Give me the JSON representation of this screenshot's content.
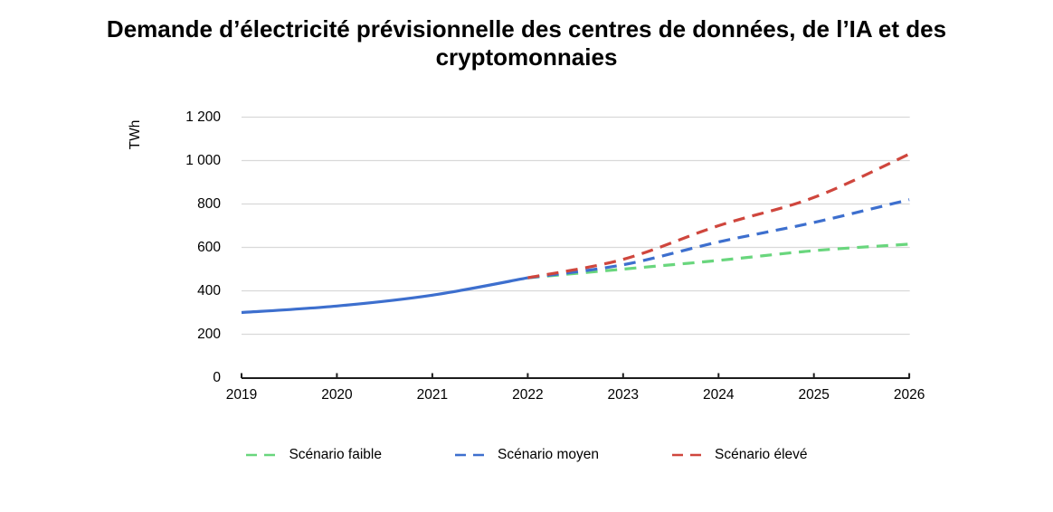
{
  "chart_data": {
    "type": "line",
    "title": "Demande d’électricité prévisionnelle des centres de données, de l’IA et des cryptomonnaies",
    "ylabel": "TWh",
    "x": [
      2019,
      2020,
      2021,
      2022,
      2023,
      2024,
      2025,
      2026
    ],
    "xtick_labels": [
      "2019",
      "2020",
      "2021",
      "2022",
      "2023",
      "2024",
      "2025",
      "2026"
    ],
    "yticks": [
      0,
      200,
      400,
      600,
      800,
      1000,
      1200
    ],
    "ytick_labels": [
      "0",
      "200",
      "400",
      "600",
      "800",
      "1 000",
      "1 200"
    ],
    "ylim": [
      0,
      1200
    ],
    "xlim": [
      2019,
      2026
    ],
    "grid": "horizontal",
    "gridline_color": "#d9d9d9",
    "axis_color": "#1c1c1c",
    "series": [
      {
        "id": "historique",
        "name": "",
        "style": "solid",
        "color": "#3d6fce",
        "x": [
          2019,
          2020,
          2021,
          2022
        ],
        "values": [
          300,
          330,
          380,
          460
        ]
      },
      {
        "id": "scenario-faible",
        "name": "Scénario faible",
        "style": "dashed",
        "color": "#69d67d",
        "x": [
          2022,
          2023,
          2024,
          2025,
          2026
        ],
        "values": [
          460,
          500,
          540,
          585,
          615
        ]
      },
      {
        "id": "scenario-moyen",
        "name": "Scénario moyen",
        "style": "dashed",
        "color": "#3d6fce",
        "x": [
          2022,
          2023,
          2024,
          2025,
          2026
        ],
        "values": [
          460,
          520,
          625,
          715,
          820
        ]
      },
      {
        "id": "scenario-eleve",
        "name": "Scénario élevé",
        "style": "dashed",
        "color": "#cf463d",
        "x": [
          2022,
          2023,
          2024,
          2025,
          2026
        ],
        "values": [
          460,
          545,
          700,
          830,
          1030
        ]
      }
    ],
    "legend": {
      "position": "bottom",
      "entries": [
        "Scénario faible",
        "Scénario moyen",
        "Scénario élevé"
      ]
    }
  }
}
